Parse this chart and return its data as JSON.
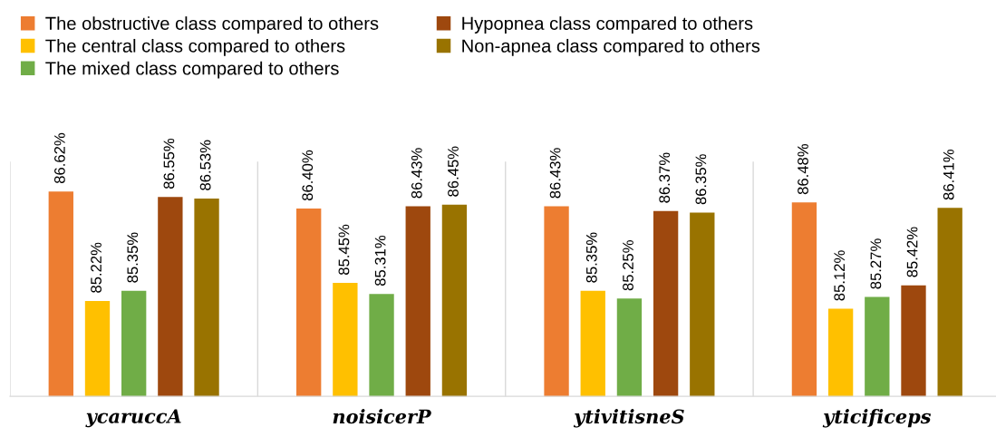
{
  "chart_data": {
    "type": "bar",
    "categories": [
      "ycaruccA",
      "noisicerP",
      "ytivitisneS",
      "yticificeps"
    ],
    "series": [
      {
        "name": "The obstructive class compared to others",
        "color": "#ed7d31",
        "values": [
          86.62,
          86.4,
          86.43,
          86.48
        ],
        "value_labels": [
          "86.62%",
          "86.40%",
          "86.43%",
          "86.48%"
        ]
      },
      {
        "name": "The central class compared to others",
        "color": "#ffc000",
        "values": [
          85.22,
          85.45,
          85.35,
          85.12
        ],
        "value_labels": [
          "85.22%",
          "85.45%",
          "85.35%",
          "85.12%"
        ]
      },
      {
        "name": "The mixed class compared to others",
        "color": "#70ad47",
        "values": [
          85.35,
          85.31,
          85.25,
          85.27
        ],
        "value_labels": [
          "85.35%",
          "85.31%",
          "85.25%",
          "85.27%"
        ]
      },
      {
        "name": "Hypopnea class compared to others",
        "color": "#9e480e",
        "values": [
          86.55,
          86.43,
          86.37,
          85.42
        ],
        "value_labels": [
          "86.55%",
          "86.43%",
          "86.37%",
          "85.42%"
        ]
      },
      {
        "name": "Non-apnea class compared to others",
        "color": "#997300",
        "values": [
          86.53,
          86.45,
          86.35,
          86.41
        ],
        "value_labels": [
          "86.53%",
          "86.45%",
          "86.35%",
          "86.41%"
        ]
      }
    ],
    "ylim": [
      84,
      87
    ],
    "tick_labels": "x",
    "grid": "x",
    "legend": "top left"
  }
}
